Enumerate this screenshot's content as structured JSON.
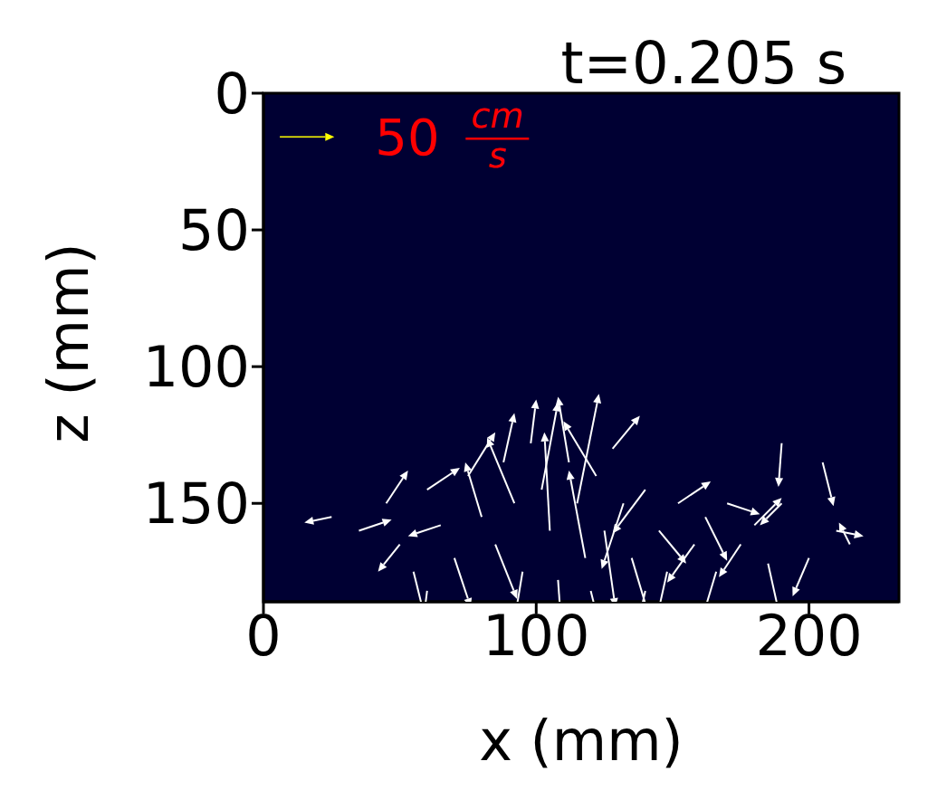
{
  "chart_data": {
    "type": "quiver",
    "title": "t=0.205 s",
    "x_label": "x (mm)",
    "y_label": "z (mm)",
    "xlim": [
      0,
      233
    ],
    "ylim": [
      186,
      0
    ],
    "xticks": [
      0,
      100,
      200
    ],
    "yticks": [
      0,
      50,
      100,
      150
    ],
    "color": "#ffffff",
    "vectors": {
      "x": [
        25,
        35,
        45,
        50,
        55,
        60,
        65,
        70,
        75,
        80,
        85,
        88,
        92,
        95,
        98,
        102,
        105,
        108,
        112,
        115,
        118,
        122,
        125,
        128,
        132,
        135,
        140,
        145,
        148,
        152,
        158,
        162,
        166,
        170,
        175,
        180,
        185,
        190,
        190,
        205,
        210,
        215,
        200,
        120,
        60,
        140
      ],
      "z": [
        155,
        160,
        150,
        165,
        175,
        145,
        158,
        170,
        140,
        155,
        165,
        135,
        150,
        175,
        128,
        145,
        160,
        178,
        135,
        150,
        170,
        140,
        160,
        130,
        150,
        170,
        145,
        160,
        175,
        150,
        165,
        155,
        175,
        150,
        165,
        158,
        172,
        150,
        128,
        135,
        160,
        165,
        170,
        182,
        182,
        182
      ],
      "u": [
        -25,
        30,
        20,
        -20,
        10,
        30,
        -30,
        15,
        25,
        -15,
        20,
        10,
        -25,
        -10,
        5,
        15,
        -5,
        5,
        -10,
        20,
        -15,
        -30,
        10,
        25,
        -20,
        15,
        -30,
        25,
        -10,
        30,
        -25,
        20,
        -15,
        30,
        -20,
        25,
        10,
        -20,
        -3,
        10,
        25,
        -10,
        -15,
        10,
        -5,
        -10
      ],
      "w": [
        5,
        -10,
        -30,
        25,
        40,
        -20,
        10,
        45,
        -40,
        -50,
        50,
        -45,
        -60,
        60,
        -40,
        -80,
        -90,
        70,
        -60,
        -100,
        -80,
        -50,
        70,
        -30,
        60,
        50,
        40,
        30,
        45,
        -20,
        35,
        40,
        50,
        10,
        30,
        -25,
        45,
        20,
        40,
        40,
        5,
        -20,
        35,
        40,
        40,
        45
      ]
    },
    "key": {
      "x": 6,
      "z": 16,
      "value": 50,
      "unit": [
        "cm",
        "s"
      ],
      "color": "#ffff00"
    }
  }
}
